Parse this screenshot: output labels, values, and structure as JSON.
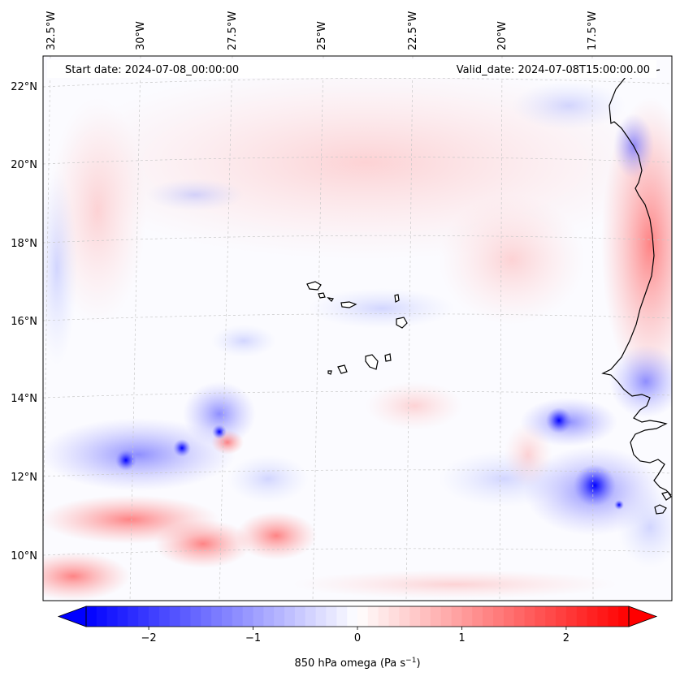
{
  "header": {
    "start_date": "Start date: 2024-07-08_00:00:00",
    "valid_date": "Valid_date: 2024-07-08T15:00:00.00"
  },
  "longitude_labels": [
    "32.5°W",
    "30°W",
    "27.5°W",
    "25°W",
    "22.5°W",
    "20°W",
    "17.5°W"
  ],
  "latitude_labels": [
    "22°N",
    "20°N",
    "18°N",
    "16°N",
    "14°N",
    "12°N",
    "10°N"
  ],
  "colorbar": {
    "title": "850 hPa omega (Pa s",
    "title_unit_exp": "−1",
    "title_close": ")",
    "ticks": [
      "−2",
      "−1",
      "0",
      "1",
      "2"
    ],
    "tick_values": [
      -2,
      -1,
      0,
      1,
      2
    ],
    "vmin": -2.6,
    "vmax": 2.6,
    "cmap": "bwr",
    "neg_color": "#0000ff",
    "mid_color": "#ffffff",
    "pos_color": "#ff0000"
  },
  "features": [
    {
      "name": "cape-verde-islands",
      "type": "island-group"
    },
    {
      "name": "west-africa-coastline",
      "type": "coastline"
    }
  ]
}
